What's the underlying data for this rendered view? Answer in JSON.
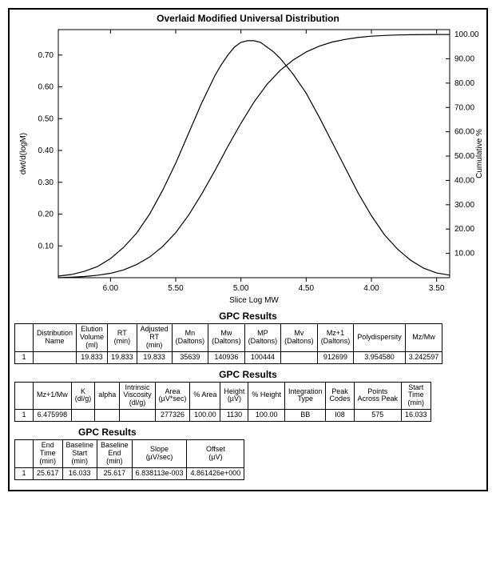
{
  "chart": {
    "title": "Overlaid Modified Universal Distribution",
    "xlabel": "Slice Log MW",
    "ylabel_left": "dwt/d(logM)",
    "ylabel_right": "Cumulative %",
    "x_reversed": true,
    "xlim": [
      3.4,
      6.4
    ],
    "xticks": [
      6.0,
      5.5,
      5.0,
      4.5,
      4.0,
      3.5
    ],
    "ylim_left": [
      0.0,
      0.78
    ],
    "yticks_left": [
      0.1,
      0.2,
      0.3,
      0.4,
      0.5,
      0.6,
      0.7
    ],
    "ylim_right": [
      0,
      102
    ],
    "yticks_right": [
      10.0,
      20.0,
      30.0,
      40.0,
      50.0,
      60.0,
      70.0,
      80.0,
      90.0,
      100.0
    ],
    "background_color": "#ffffff",
    "line_color": "#000000",
    "tick_color": "#000000",
    "grid": false,
    "series": {
      "distribution": [
        [
          6.4,
          0.005
        ],
        [
          6.3,
          0.01
        ],
        [
          6.2,
          0.02
        ],
        [
          6.1,
          0.035
        ],
        [
          6.0,
          0.06
        ],
        [
          5.9,
          0.095
        ],
        [
          5.8,
          0.14
        ],
        [
          5.7,
          0.2
        ],
        [
          5.6,
          0.275
        ],
        [
          5.5,
          0.36
        ],
        [
          5.4,
          0.455
        ],
        [
          5.3,
          0.55
        ],
        [
          5.2,
          0.635
        ],
        [
          5.15,
          0.67
        ],
        [
          5.1,
          0.7
        ],
        [
          5.05,
          0.725
        ],
        [
          5.0,
          0.74
        ],
        [
          4.95,
          0.745
        ],
        [
          4.9,
          0.745
        ],
        [
          4.85,
          0.74
        ],
        [
          4.8,
          0.725
        ],
        [
          4.75,
          0.71
        ],
        [
          4.7,
          0.69
        ],
        [
          4.6,
          0.64
        ],
        [
          4.5,
          0.58
        ],
        [
          4.4,
          0.505
        ],
        [
          4.3,
          0.425
        ],
        [
          4.2,
          0.345
        ],
        [
          4.1,
          0.265
        ],
        [
          4.0,
          0.195
        ],
        [
          3.9,
          0.135
        ],
        [
          3.8,
          0.09
        ],
        [
          3.7,
          0.055
        ],
        [
          3.6,
          0.03
        ],
        [
          3.5,
          0.015
        ],
        [
          3.4,
          0.008
        ]
      ],
      "cumulative": [
        [
          6.4,
          0.0
        ],
        [
          6.3,
          0.2
        ],
        [
          6.2,
          0.5
        ],
        [
          6.1,
          1.0
        ],
        [
          6.0,
          1.8
        ],
        [
          5.9,
          3.2
        ],
        [
          5.8,
          5.4
        ],
        [
          5.7,
          8.5
        ],
        [
          5.6,
          12.8
        ],
        [
          5.5,
          18.5
        ],
        [
          5.4,
          25.8
        ],
        [
          5.3,
          34.5
        ],
        [
          5.2,
          44.0
        ],
        [
          5.1,
          54.0
        ],
        [
          5.0,
          63.5
        ],
        [
          4.9,
          72.2
        ],
        [
          4.8,
          79.5
        ],
        [
          4.7,
          85.2
        ],
        [
          4.6,
          89.5
        ],
        [
          4.5,
          92.8
        ],
        [
          4.4,
          95.2
        ],
        [
          4.3,
          96.9
        ],
        [
          4.2,
          98.0
        ],
        [
          4.1,
          98.8
        ],
        [
          4.0,
          99.3
        ],
        [
          3.9,
          99.6
        ],
        [
          3.8,
          99.8
        ],
        [
          3.7,
          99.9
        ],
        [
          3.6,
          99.95
        ],
        [
          3.5,
          99.98
        ],
        [
          3.4,
          100.0
        ]
      ]
    }
  },
  "table1": {
    "title": "GPC Results",
    "headers": [
      "",
      "Distribution\nName",
      "Elution\nVolume\n(ml)",
      "RT\n(min)",
      "Adjusted\nRT\n(min)",
      "Mn\n(Daltons)",
      "Mw\n(Daltons)",
      "MP\n(Daltons)",
      "Mv\n(Daltons)",
      "Mz+1\n(Daltons)",
      "Polydispersity",
      "Mz/Mw"
    ],
    "rows": [
      [
        "1",
        "",
        "19.833",
        "19.833",
        "19.833",
        "35639",
        "140936",
        "100444",
        "",
        "912699",
        "3.954580",
        "3.242597"
      ]
    ]
  },
  "table2": {
    "title": "GPC Results",
    "headers": [
      "",
      "Mz+1/Mw",
      "K\n(dl/g)",
      "alpha",
      "Intrinsic\nViscosity\n(dl/g)",
      "Area\n(µV*sec)",
      "% Area",
      "Height\n(µV)",
      "% Height",
      "Integration\nType",
      "Peak\nCodes",
      "Points\nAcross Peak",
      "Start\nTime\n(min)"
    ],
    "rows": [
      [
        "1",
        "6.475998",
        "",
        "",
        "",
        "277326",
        "100.00",
        "1130",
        "100.00",
        "BB",
        "I08",
        "575",
        "16.033"
      ]
    ]
  },
  "table3": {
    "title": "GPC Results",
    "headers": [
      "",
      "End\nTime\n(min)",
      "Baseline\nStart\n(min)",
      "Baseline\nEnd\n(min)",
      "Slope\n(µV/sec)",
      "Offset\n(µV)"
    ],
    "rows": [
      [
        "1",
        "25.617",
        "16.033",
        "25.617",
        "6.838113e-003",
        "4.861426e+000"
      ]
    ]
  }
}
